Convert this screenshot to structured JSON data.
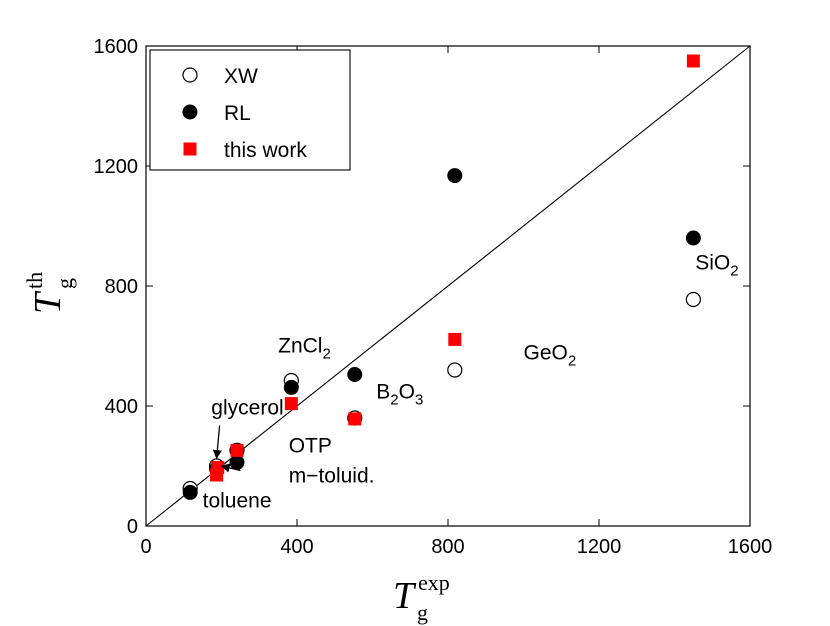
{
  "chart_data": {
    "type": "scatter",
    "xlim": [
      0,
      1600
    ],
    "ylim": [
      0,
      1600
    ],
    "xticks": [
      0,
      400,
      800,
      1200,
      1600
    ],
    "yticks": [
      0,
      400,
      800,
      1200,
      1600
    ],
    "xlabel": {
      "main": "T",
      "sub": "g",
      "sup": "exp"
    },
    "ylabel": {
      "main": "T",
      "sub": "g",
      "sup": "th"
    },
    "diagonal": true,
    "legend": {
      "position": "top-left",
      "entries": [
        {
          "name": "XW",
          "marker": "open-circle"
        },
        {
          "name": "RL",
          "marker": "filled-circle"
        },
        {
          "name": "this work",
          "marker": "red-square"
        }
      ]
    },
    "series": [
      {
        "name": "XW",
        "marker": "open-circle",
        "color": "#000000",
        "points": [
          [
            117,
            125
          ],
          [
            187,
            200
          ],
          [
            241,
            252
          ],
          [
            385,
            485
          ],
          [
            553,
            360
          ],
          [
            818,
            520
          ],
          [
            1450,
            755
          ]
        ]
      },
      {
        "name": "RL",
        "marker": "filled-circle",
        "color": "#000000",
        "points": [
          [
            117,
            112
          ],
          [
            187,
            190
          ],
          [
            241,
            212
          ],
          [
            385,
            462
          ],
          [
            553,
            505
          ],
          [
            818,
            1168
          ],
          [
            1450,
            960
          ]
        ]
      },
      {
        "name": "this work",
        "marker": "red-square",
        "color": "#ff0000",
        "points": [
          [
            187,
            170
          ],
          [
            190,
            195
          ],
          [
            241,
            252
          ],
          [
            385,
            408
          ],
          [
            553,
            357
          ],
          [
            818,
            622
          ],
          [
            1450,
            1550
          ]
        ]
      }
    ],
    "annotations": [
      {
        "id": "toluene",
        "text": "toluene",
        "x": 150,
        "y": 62
      },
      {
        "id": "mtoluid",
        "text": "m−toluid.",
        "x": 378,
        "y": 145
      },
      {
        "id": "glycerol",
        "text": "glycerol",
        "x": 173,
        "y": 372
      },
      {
        "id": "otp",
        "text": "OTP",
        "x": 378,
        "y": 245
      },
      {
        "id": "zncl",
        "text": "ZnCl",
        "sub": "2",
        "x": 350,
        "y": 578
      },
      {
        "id": "b2o3",
        "text": "B",
        "sub": "2",
        "text2": "O",
        "sub2": "3",
        "x": 610,
        "y": 425
      },
      {
        "id": "geo2",
        "text": "GeO",
        "sub": "2",
        "x": 1000,
        "y": 555
      },
      {
        "id": "sio2",
        "text": "SiO",
        "sub": "2",
        "x": 1455,
        "y": 855
      }
    ],
    "arrows": [
      {
        "id": "glycerol-arrow",
        "from": [
          195,
          335
        ],
        "to": [
          187,
          226
        ]
      },
      {
        "id": "mtoluid-arrow",
        "from": [
          250,
          185
        ],
        "to": [
          200,
          200
        ]
      }
    ]
  }
}
